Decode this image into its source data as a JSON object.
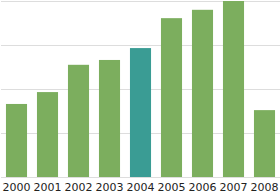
{
  "chart_data": {
    "type": "bar",
    "categories": [
      "2000",
      "2001",
      "2002",
      "2003",
      "2004",
      "2005",
      "2006",
      "2007",
      "2008"
    ],
    "values": [
      1.66,
      1.93,
      2.55,
      2.66,
      2.93,
      3.61,
      3.8,
      4.0,
      1.52
    ],
    "colors": [
      "#7cae5e",
      "#7cae5e",
      "#7cae5e",
      "#7cae5e",
      "#3a9c94",
      "#7cae5e",
      "#7cae5e",
      "#7cae5e",
      "#7cae5e"
    ],
    "ylim": [
      0,
      4
    ],
    "yticks": [
      0,
      1,
      2,
      3,
      4
    ],
    "grid": true,
    "tick_labels": "x"
  }
}
